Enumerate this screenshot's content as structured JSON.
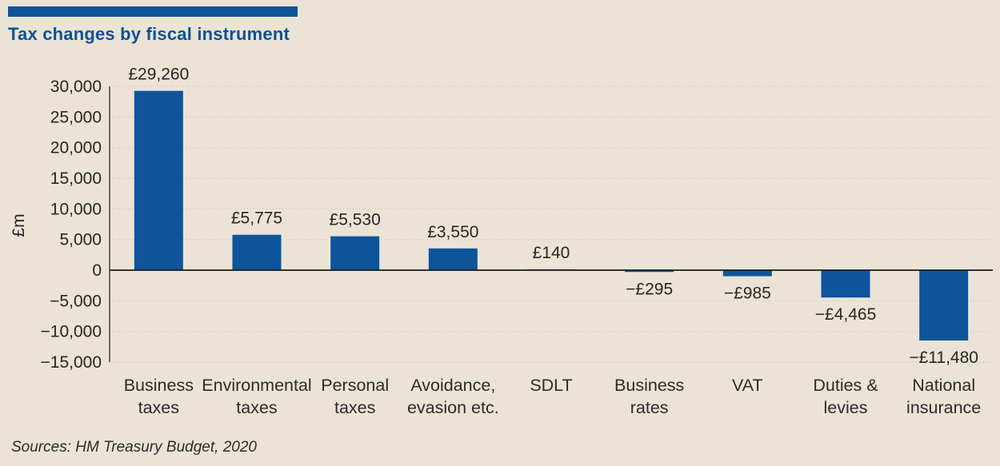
{
  "header": {
    "title": "Tax changes by fiscal instrument"
  },
  "source": "Sources: HM Treasury Budget, 2020",
  "colors": {
    "background": "#EBE4D6",
    "accent_bar": "#0E5499",
    "title_text": "#0A5296",
    "bar_fill": "#0D549B",
    "grid_line": "#C9C2B3",
    "axis_line": "#4D4D4D",
    "zero_line": "#1A1A1A",
    "tick_text": "#262626",
    "label_text": "#262626",
    "category_text": "#2B2B2B"
  },
  "chart_data": {
    "type": "bar",
    "title": "Tax changes by fiscal instrument",
    "categories": [
      "Business taxes",
      "Environmental taxes",
      "Personal taxes",
      "Avoidance, evasion etc.",
      "SDLT",
      "Business rates",
      "VAT",
      "Duties & levies",
      "National insurance"
    ],
    "category_lines": [
      [
        "Business",
        "taxes"
      ],
      [
        "Environmental",
        "taxes"
      ],
      [
        "Personal",
        "taxes"
      ],
      [
        "Avoidance,",
        "evasion etc."
      ],
      [
        "SDLT"
      ],
      [
        "Business",
        "rates"
      ],
      [
        "VAT"
      ],
      [
        "Duties &",
        "levies"
      ],
      [
        "National",
        "insurance"
      ]
    ],
    "values": [
      29260,
      5775,
      5530,
      3550,
      140,
      -295,
      -985,
      -4465,
      -11480
    ],
    "value_labels": [
      "£29,260",
      "£5,775",
      "£5,530",
      "£3,550",
      "£140",
      "−£295",
      "−£985",
      "−£4,465",
      "−£11,480"
    ],
    "xlabel": "",
    "ylabel": "£m",
    "ylim": [
      -15000,
      30000
    ],
    "yticks": [
      30000,
      25000,
      20000,
      15000,
      10000,
      5000,
      0,
      -5000,
      -10000,
      -15000
    ],
    "ytick_labels": [
      "30,000",
      "25,000",
      "20,000",
      "15,000",
      "10,000",
      "5,000",
      "0",
      "−5,000",
      "−10,000",
      "−15,000"
    ],
    "grid": "dotted-horizontal",
    "legend": "none"
  }
}
